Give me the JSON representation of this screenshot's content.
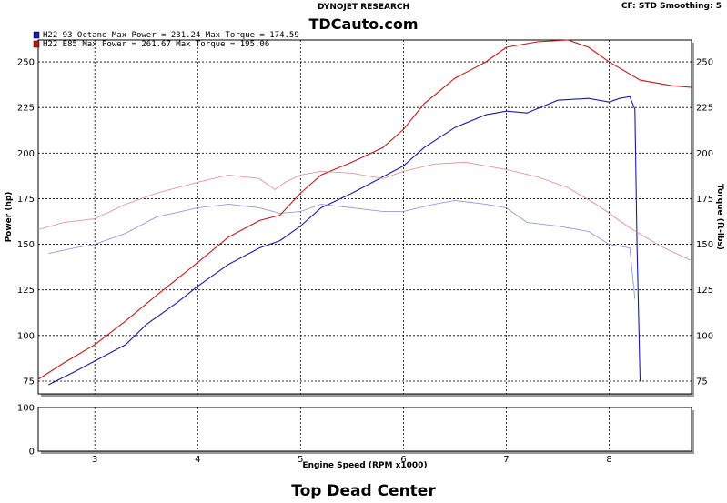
{
  "header": {
    "title": "DYNOJET RESEARCH",
    "settings": "CF: STD   Smoothing: 5",
    "brand": "TDCauto.com",
    "footer": "Top Dead Center"
  },
  "legend": [
    {
      "text": "H22 93 Octane Max Power = 231.24    Max Torque = 174.59",
      "color": "#1a1aa8"
    },
    {
      "text": "H22 E85 Max Power = 261.67    Max Torque = 195.06",
      "color": "#c01a1a"
    }
  ],
  "chart_data": {
    "type": "line",
    "title": "DYNOJET RESEARCH",
    "xlabel": "Engine Speed (RPM x1000)",
    "ylabel": "Power (hp)",
    "y2label": "Torque (ft-lbs)",
    "xlim": [
      2.45,
      8.8
    ],
    "ylim": [
      68,
      262
    ],
    "xticks": [
      "3",
      "4",
      "5",
      "6",
      "7",
      "8"
    ],
    "xtick_values": [
      3,
      4,
      5,
      6,
      7,
      8
    ],
    "yticks": [
      "75",
      "100",
      "125",
      "150",
      "175",
      "200",
      "225",
      "250"
    ],
    "ytick_values": [
      75,
      100,
      125,
      150,
      175,
      200,
      225,
      250
    ],
    "y2ticks": [
      "75",
      "100",
      "125",
      "150",
      "175",
      "200",
      "225",
      "250"
    ],
    "grid": true,
    "lower_panel": {
      "ylim": [
        0,
        100
      ],
      "yticks": [
        "0",
        "100"
      ],
      "ytick_values": [
        0,
        100
      ]
    },
    "series": [
      {
        "name": "H22 93 Octane Max Power = 231.24",
        "kind": "power",
        "color": "#1a1aa8",
        "x": [
          2.55,
          2.8,
          3.0,
          3.3,
          3.5,
          3.8,
          4.0,
          4.3,
          4.6,
          4.8,
          5.0,
          5.2,
          5.5,
          5.8,
          6.0,
          6.2,
          6.5,
          6.8,
          7.0,
          7.2,
          7.5,
          7.8,
          8.0,
          8.1,
          8.2,
          8.25,
          8.27,
          8.3
        ],
        "y": [
          73,
          80,
          86,
          95,
          106,
          118,
          127,
          139,
          148,
          152,
          160,
          170,
          178,
          187,
          193,
          203,
          214,
          221,
          223,
          222,
          229,
          230,
          228,
          230,
          231,
          224,
          150,
          75
        ]
      },
      {
        "name": "H22 93 Octane Max Torque = 174.59",
        "kind": "torque",
        "color": "#8a8ae0",
        "x": [
          2.55,
          2.8,
          3.0,
          3.3,
          3.6,
          4.0,
          4.3,
          4.6,
          4.8,
          5.0,
          5.2,
          5.5,
          5.8,
          6.0,
          6.3,
          6.5,
          6.8,
          7.0,
          7.2,
          7.5,
          7.8,
          8.0,
          8.2,
          8.25
        ],
        "y": [
          145,
          148,
          150,
          156,
          165,
          170,
          172,
          170,
          167,
          168,
          172,
          170,
          168,
          168,
          172,
          174,
          172,
          170,
          162,
          160,
          157,
          150,
          148,
          120
        ]
      },
      {
        "name": "H22 E85 Max Power = 261.67",
        "kind": "power",
        "color": "#c01a1a",
        "x": [
          2.45,
          2.7,
          3.0,
          3.3,
          3.6,
          4.0,
          4.3,
          4.6,
          4.8,
          5.0,
          5.2,
          5.5,
          5.8,
          6.0,
          6.2,
          6.5,
          6.8,
          7.0,
          7.3,
          7.6,
          7.8,
          8.0,
          8.3,
          8.6,
          8.8
        ],
        "y": [
          76,
          85,
          95,
          108,
          122,
          140,
          154,
          163,
          166,
          178,
          188,
          195,
          203,
          213,
          227,
          241,
          250,
          258,
          261,
          262,
          258,
          250,
          240,
          237,
          236
        ]
      },
      {
        "name": "H22 E85 Max Torque = 195.06",
        "kind": "torque",
        "color": "#e08a8a",
        "x": [
          2.45,
          2.7,
          3.0,
          3.3,
          3.6,
          4.0,
          4.3,
          4.6,
          4.75,
          4.85,
          5.0,
          5.2,
          5.5,
          5.8,
          6.0,
          6.3,
          6.6,
          6.8,
          7.0,
          7.3,
          7.6,
          7.9,
          8.2,
          8.5,
          8.8
        ],
        "y": [
          158,
          162,
          164,
          172,
          178,
          184,
          188,
          186,
          180,
          184,
          188,
          190,
          189,
          186,
          190,
          194,
          195,
          193,
          191,
          187,
          181,
          171,
          159,
          149,
          141
        ]
      }
    ]
  }
}
